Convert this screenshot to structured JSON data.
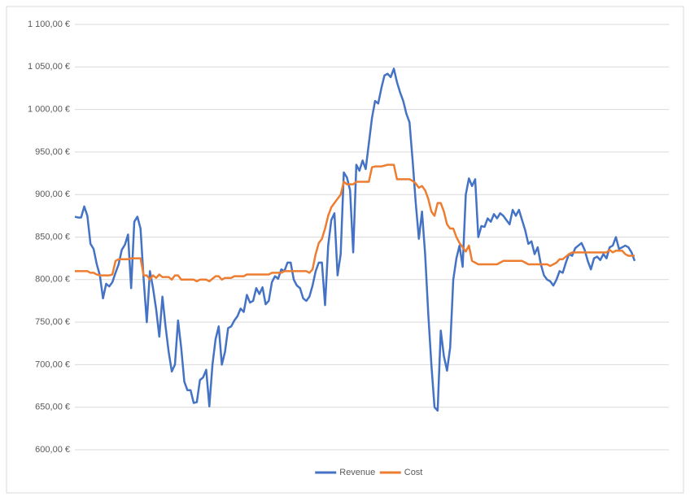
{
  "chart_data": {
    "type": "line",
    "ylim": [
      600,
      1100
    ],
    "yticks": [
      {
        "value": 600,
        "label": "600,00 €"
      },
      {
        "value": 650,
        "label": "650,00 €"
      },
      {
        "value": 700,
        "label": "700,00 €"
      },
      {
        "value": 750,
        "label": "750,00 €"
      },
      {
        "value": 800,
        "label": "800,00 €"
      },
      {
        "value": 850,
        "label": "850,00 €"
      },
      {
        "value": 900,
        "label": "900,00 €"
      },
      {
        "value": 950,
        "label": "950,00 €"
      },
      {
        "value": 1000,
        "label": "1 000,00 €"
      },
      {
        "value": 1050,
        "label": "1 050,00 €"
      },
      {
        "value": 1100,
        "label": "1 100,00 €"
      }
    ],
    "grid": true,
    "legend": "bottom",
    "series": [
      {
        "name": "Revenue",
        "color": "#4472c4",
        "values": [
          874,
          873,
          873,
          886,
          875,
          842,
          836,
          818,
          805,
          778,
          795,
          792,
          797,
          808,
          818,
          835,
          841,
          853,
          790,
          868,
          874,
          860,
          800,
          750,
          810,
          790,
          765,
          733,
          780,
          745,
          715,
          692,
          700,
          752,
          720,
          680,
          670,
          670,
          655,
          656,
          682,
          685,
          694,
          651,
          700,
          730,
          745,
          700,
          715,
          743,
          745,
          752,
          757,
          766,
          762,
          782,
          773,
          775,
          790,
          783,
          791,
          771,
          775,
          797,
          804,
          801,
          812,
          810,
          820,
          820,
          800,
          793,
          790,
          778,
          775,
          780,
          793,
          810,
          820,
          820,
          770,
          840,
          870,
          878,
          805,
          830,
          926,
          920,
          905,
          832,
          935,
          928,
          940,
          930,
          960,
          990,
          1010,
          1007,
          1025,
          1040,
          1042,
          1038,
          1048,
          1032,
          1020,
          1010,
          995,
          985,
          940,
          890,
          848,
          880,
          830,
          760,
          700,
          650,
          646,
          740,
          710,
          693,
          720,
          800,
          825,
          840,
          815,
          900,
          919,
          910,
          918,
          850,
          863,
          862,
          872,
          868,
          877,
          872,
          878,
          875,
          870,
          865,
          882,
          875,
          882,
          870,
          858,
          842,
          845,
          830,
          838,
          818,
          805,
          800,
          798,
          793,
          800,
          810,
          808,
          820,
          830,
          828,
          837,
          840,
          843,
          835,
          822,
          812,
          825,
          827,
          823,
          830,
          825,
          838,
          840,
          850,
          836,
          838,
          840,
          838,
          832,
          822
        ]
      },
      {
        "name": "Cost",
        "color": "#ed7d31",
        "values": [
          810,
          810,
          810,
          810,
          810,
          808,
          808,
          806,
          805,
          805,
          805,
          805,
          806,
          822,
          824,
          824,
          824,
          824,
          825,
          825,
          825,
          825,
          805,
          805,
          800,
          805,
          802,
          806,
          803,
          803,
          803,
          800,
          805,
          805,
          800,
          800,
          800,
          800,
          800,
          798,
          800,
          800,
          800,
          798,
          801,
          804,
          804,
          800,
          802,
          802,
          802,
          804,
          804,
          804,
          804,
          806,
          806,
          806,
          806,
          806,
          806,
          806,
          806,
          808,
          808,
          808,
          808,
          810,
          810,
          810,
          810,
          810,
          810,
          810,
          810,
          808,
          812,
          830,
          843,
          848,
          860,
          875,
          885,
          890,
          895,
          900,
          915,
          912,
          912,
          912,
          915,
          915,
          915,
          915,
          915,
          932,
          933,
          933,
          933,
          934,
          935,
          935,
          935,
          918,
          918,
          918,
          918,
          918,
          916,
          913,
          908,
          910,
          905,
          895,
          880,
          875,
          890,
          890,
          880,
          865,
          860,
          860,
          850,
          843,
          838,
          833,
          840,
          822,
          820,
          818,
          818,
          818,
          818,
          818,
          818,
          818,
          820,
          822,
          822,
          822,
          822,
          822,
          822,
          822,
          820,
          818,
          818,
          818,
          818,
          818,
          818,
          818,
          816,
          818,
          820,
          824,
          824,
          827,
          830,
          832,
          832,
          832,
          832,
          832,
          832,
          832,
          832,
          832,
          832,
          832,
          832,
          835,
          832,
          834,
          834,
          834,
          830,
          828,
          828,
          828
        ]
      }
    ]
  }
}
